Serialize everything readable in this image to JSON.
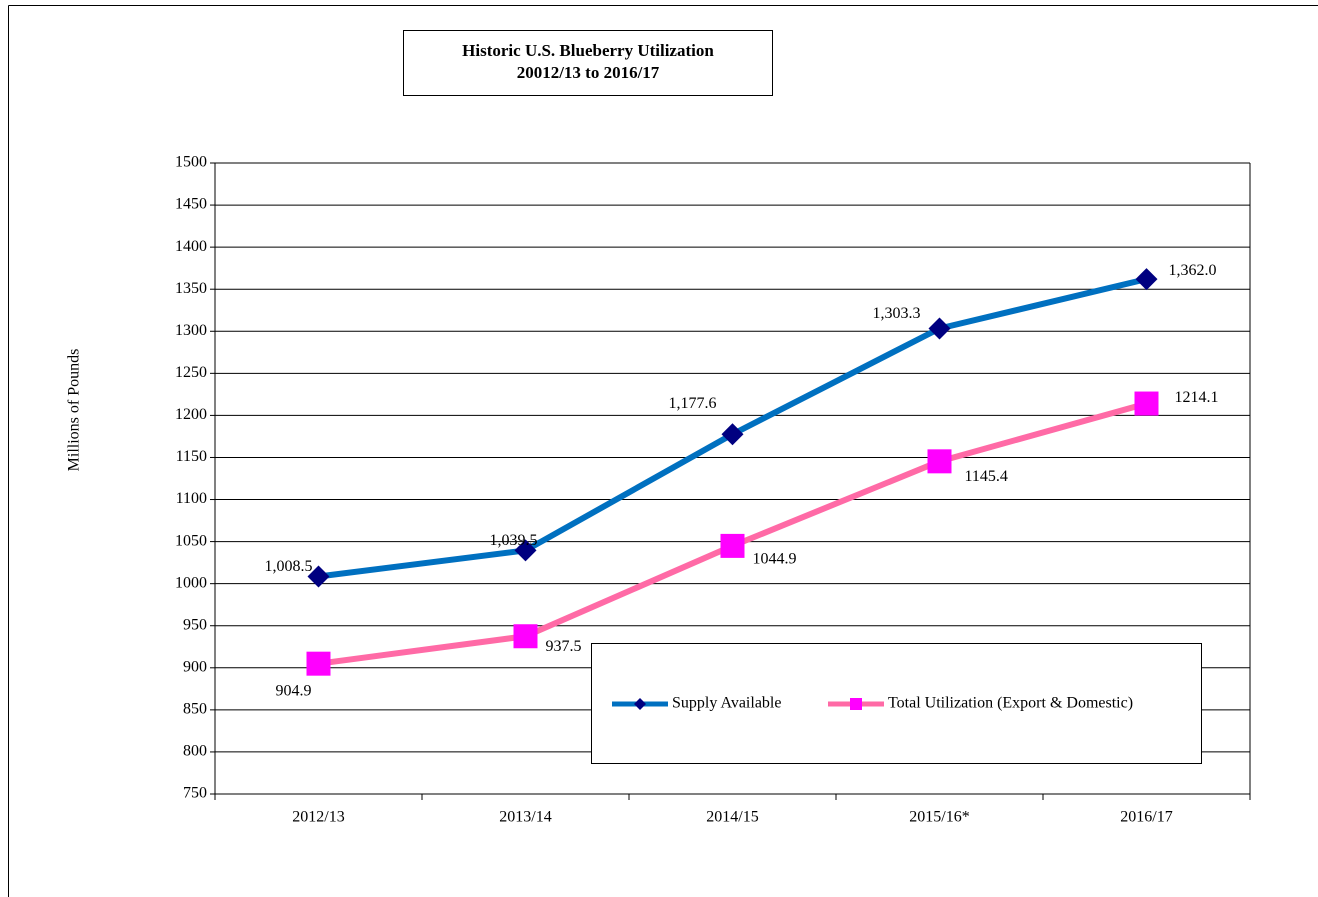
{
  "chart_data": {
    "type": "line",
    "title": [
      "Historic U.S. Blueberry Utilization",
      "20012/13 to 2016/17"
    ],
    "ylabel": "Millions of Pounds",
    "categories": [
      "2012/13",
      "2013/14",
      "2014/15",
      "2015/16*",
      "2016/17"
    ],
    "series": [
      {
        "name": "Supply Available",
        "color": "#0070c0",
        "marker": "diamond",
        "marker_color": "#000080",
        "values": [
          1008.5,
          1039.5,
          1177.6,
          1303.3,
          1362.0
        ],
        "value_labels": [
          "1,008.5",
          "1,039.5",
          "1,177.6",
          "1,303.3",
          "1,362.0"
        ]
      },
      {
        "name": "Total Utilization (Export & Domestic)",
        "color": "#ff6aa6",
        "marker": "square",
        "marker_color": "#ff00ff",
        "values": [
          904.9,
          937.5,
          1044.9,
          1145.4,
          1214.1
        ]
      }
    ],
    "ylim": [
      750,
      1500
    ],
    "yticks": [
      750,
      800,
      850,
      900,
      950,
      1000,
      1050,
      1100,
      1150,
      1200,
      1250,
      1300,
      1350,
      1400,
      1450,
      1500
    ],
    "grid": true,
    "legend": "lower right"
  }
}
